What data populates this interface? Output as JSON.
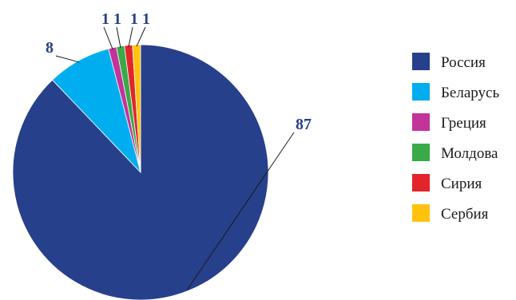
{
  "chart_data": {
    "type": "pie",
    "title": "",
    "categories": [
      "Россия",
      "Беларусь",
      "Греция",
      "Молдова",
      "Сирия",
      "Сербия"
    ],
    "values": [
      87,
      8,
      1,
      1,
      1,
      1
    ],
    "data_labels": [
      "87",
      "8",
      "1",
      "1",
      "1",
      "1"
    ],
    "colors": [
      "#27408b",
      "#00aeef",
      "#c2349b",
      "#3aaa48",
      "#e3242b",
      "#ffc20e"
    ],
    "legend": {
      "position": "right",
      "entries": [
        "Россия",
        "Беларусь",
        "Греция",
        "Молдова",
        "Сирия",
        "Сербия"
      ]
    }
  }
}
